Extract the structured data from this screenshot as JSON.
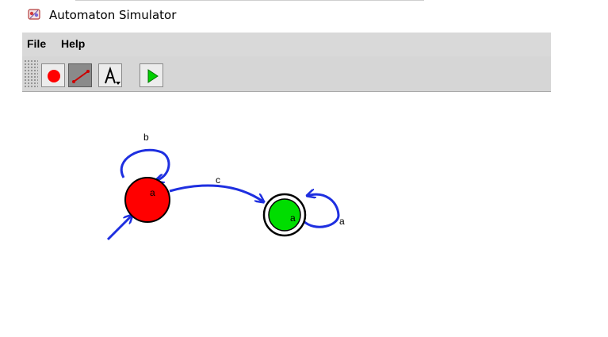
{
  "window": {
    "title": "Automaton Simulator",
    "icon": "app-icon"
  },
  "menubar": {
    "file": "File",
    "help": "Help"
  },
  "toolbar": {
    "buttons": [
      {
        "name": "add-state-tool",
        "icon": "red-circle-icon"
      },
      {
        "name": "add-transition-tool",
        "icon": "arrow-line-icon",
        "pressed": true
      },
      {
        "name": "label-tool",
        "icon": "text-a-icon"
      },
      {
        "name": "run-simulation-tool",
        "icon": "green-play-icon"
      }
    ]
  },
  "automaton": {
    "states": [
      {
        "id": "s0",
        "label": "a",
        "color": "#ff0000",
        "initial": true,
        "accepting": false
      },
      {
        "id": "s1",
        "label": "a",
        "color": "#00dd00",
        "initial": false,
        "accepting": true
      }
    ],
    "transitions": [
      {
        "from": "s0",
        "to": "s0",
        "label": "b"
      },
      {
        "from": "s0",
        "to": "s1",
        "label": "c"
      },
      {
        "from": "s1",
        "to": "s1",
        "label": "a"
      }
    ],
    "edge_color": "#1e2fe0"
  }
}
